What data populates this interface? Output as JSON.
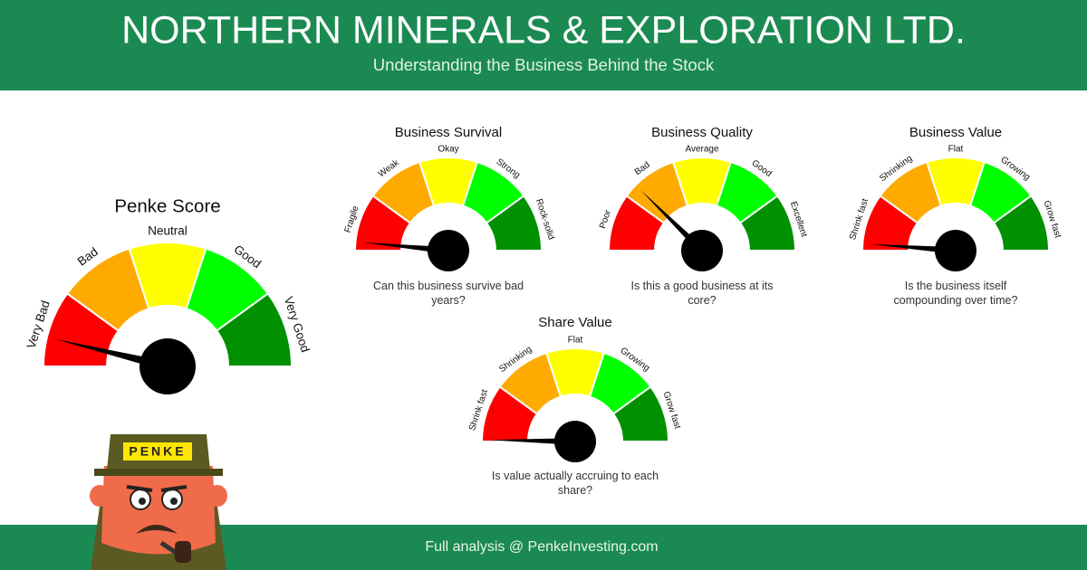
{
  "header": {
    "title": "NORTHERN MINERALS & EXPLORATION LTD.",
    "subtitle": "Understanding the Business Behind the Stock"
  },
  "segment_colors": [
    "#ff0000",
    "#ffaa00",
    "#ffff00",
    "#00ff00",
    "#009000"
  ],
  "needle_color": "#000000",
  "gauges": [
    {
      "title": "Penke Score",
      "segments": [
        "Very Bad",
        "Bad",
        "Neutral",
        "Good",
        "Very Good"
      ],
      "lim": [
        0,
        5
      ],
      "value": 0.38
    },
    {
      "title": "Business Survival",
      "segments": [
        "Fragile",
        "Weak",
        "Okay",
        "Strong",
        "Rock-solid"
      ],
      "lim": [
        0,
        5
      ],
      "value": 0.15,
      "question": "Can this business survive bad years?"
    },
    {
      "title": "Business Quality",
      "segments": [
        "Poor",
        "Bad",
        "Average",
        "Good",
        "Excellent"
      ],
      "lim": [
        0,
        5
      ],
      "value": 1.24,
      "question": "Is this a good business at its core?"
    },
    {
      "title": "Business Value",
      "segments": [
        "Shrink fast",
        "Shrinking",
        "Flat",
        "Growing",
        "Grow fast"
      ],
      "lim": [
        0,
        5
      ],
      "value": 0.12,
      "question": "Is the business itself compounding over time?"
    },
    {
      "title": "Share Value",
      "segments": [
        "Shrink fast",
        "Shrinking",
        "Flat",
        "Growing",
        "Grow fast"
      ],
      "lim": [
        0,
        5
      ],
      "value": 0.03,
      "question": "Is value actually accruing to each share?"
    }
  ],
  "mascot": {
    "hat_text": "PENKE"
  },
  "footer": {
    "text": "Full analysis @ PenkeInvesting.com"
  }
}
